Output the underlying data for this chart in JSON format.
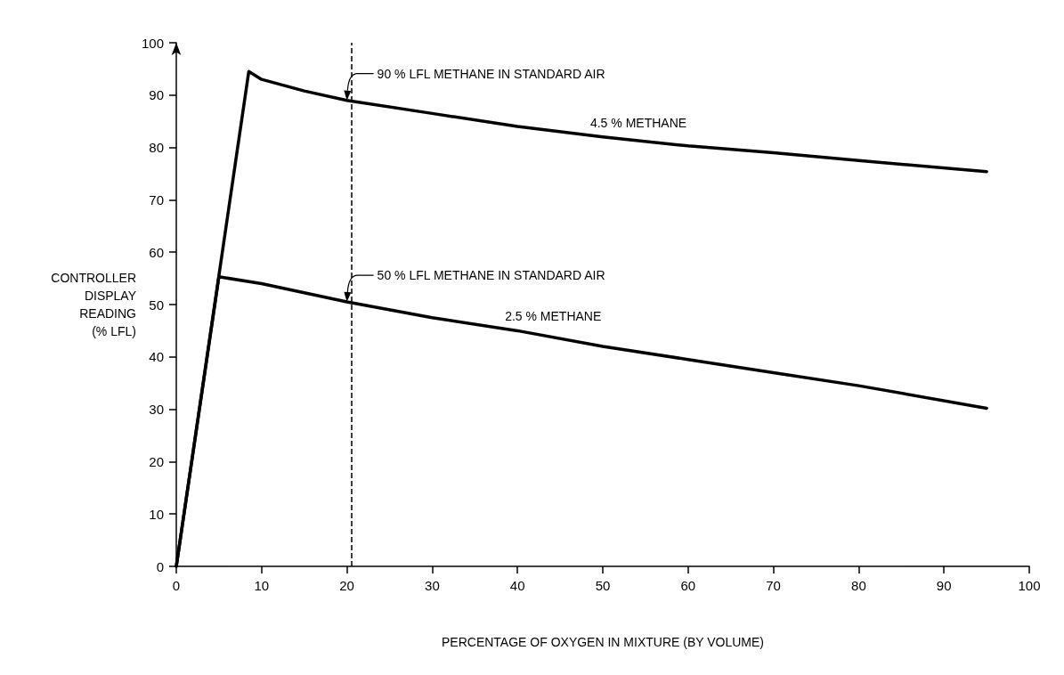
{
  "chart_data": {
    "type": "line",
    "xlabel": "PERCENTAGE OF OXYGEN IN MIXTURE (BY VOLUME)",
    "ylabel": "CONTROLLER\nDISPLAY\nREADING\n(% LFL)",
    "xlim": [
      0,
      100
    ],
    "xticks": [
      0,
      10,
      20,
      30,
      40,
      50,
      60,
      70,
      80,
      90,
      100
    ],
    "ylim": [
      0,
      100
    ],
    "yticks": [
      0,
      10,
      20,
      30,
      40,
      50,
      60,
      70,
      80,
      90,
      100
    ],
    "grid": false,
    "legend": false,
    "marker": "none",
    "line_style": "solid",
    "series": [
      {
        "name": "4.5 % METHANE",
        "color": "#000000",
        "x": [
          0,
          8.5,
          10,
          15,
          20,
          30,
          40,
          50,
          60,
          70,
          80,
          95
        ],
        "values": [
          0,
          94.5,
          93,
          90.8,
          89,
          86.5,
          84,
          82,
          80.3,
          79,
          77.5,
          75.4
        ]
      },
      {
        "name": "2.5 % METHANE",
        "color": "#000000",
        "x": [
          0,
          5,
          10,
          20,
          30,
          40,
          50,
          60,
          70,
          80,
          95
        ],
        "values": [
          0,
          55.3,
          54,
          50.5,
          47.5,
          45,
          42,
          39.5,
          37,
          34.5,
          30.2
        ]
      }
    ],
    "ref_lines": [
      {
        "axis": "x",
        "value": 20.5,
        "color": "#000000",
        "line_style": "dashed"
      }
    ],
    "annotations": [
      {
        "text": "90 % LFL METHANE IN STANDARD AIR",
        "x": 20,
        "y": 89
      },
      {
        "text": "50 % LFL METHANE IN STANDARD AIR",
        "x": 20,
        "y": 50.5
      }
    ]
  }
}
